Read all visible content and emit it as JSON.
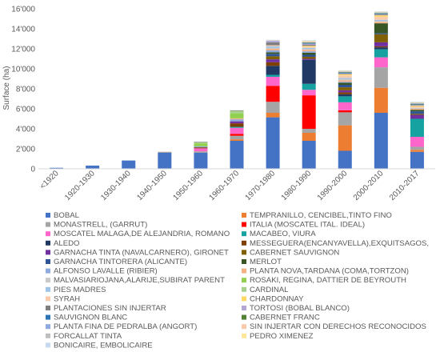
{
  "chart_data": {
    "type": "bar",
    "stacked": true,
    "ylabel": "Surface (ha)",
    "xlabel": "",
    "title": "",
    "ylim": [
      0,
      16000
    ],
    "yticks": [
      0,
      2000,
      4000,
      6000,
      8000,
      10000,
      12000,
      14000,
      16000
    ],
    "ytick_labels": [
      "0",
      "2'000",
      "4'000",
      "6'000",
      "8'000",
      "10'000",
      "12'000",
      "14'000",
      "16'000"
    ],
    "grid": false,
    "legend_placement": "bottom, two columns",
    "categories": [
      "<1920",
      "1920-1930",
      "1930-1940",
      "1940-1950",
      "1950-1960",
      "1960-1970",
      "1970-1980",
      "1980-1990",
      "1990-2000",
      "2000-2010",
      "2010-2017"
    ],
    "series": [
      {
        "name": "BOBAL",
        "color": "#4472C4",
        "values": [
          100,
          320,
          830,
          1600,
          1600,
          2800,
          5150,
          2800,
          1800,
          5600,
          1700
        ]
      },
      {
        "name": "TEMPRANILLO, CENCIBEL,TINTO FINO",
        "color": "#ED7D31",
        "values": [
          0,
          0,
          0,
          0,
          0,
          150,
          450,
          800,
          2550,
          2500,
          200
        ]
      },
      {
        "name": "MONASTRELL, (GARRUT)",
        "color": "#A5A5A5",
        "values": [
          0,
          0,
          0,
          100,
          150,
          350,
          1100,
          400,
          1300,
          2050,
          300
        ]
      },
      {
        "name": "ITALIA (MOSCATEL ITAL. IDEAL)",
        "color": "#FF0000",
        "values": [
          0,
          0,
          0,
          0,
          0,
          200,
          1600,
          3350,
          200,
          0,
          0
        ]
      },
      {
        "name": "MOSCATEL MALAGA,DE ALEJANDRIA, ROMANO",
        "color": "#FF66CC",
        "values": [
          0,
          0,
          0,
          0,
          300,
          600,
          900,
          550,
          800,
          1000,
          1000
        ]
      },
      {
        "name": "MACABEO, VIURA",
        "color": "#17A2A2",
        "values": [
          0,
          0,
          0,
          0,
          0,
          100,
          200,
          600,
          600,
          800,
          1800
        ]
      },
      {
        "name": "ALEDO",
        "color": "#1F3864",
        "values": [
          0,
          0,
          0,
          0,
          0,
          0,
          900,
          2400,
          200,
          200,
          0
        ]
      },
      {
        "name": "MESSEGUERA(ENCANYAVELLA),EXQUITSAGOS,",
        "color": "#7F3F00",
        "values": [
          0,
          0,
          0,
          0,
          100,
          350,
          350,
          0,
          200,
          100,
          0
        ]
      },
      {
        "name": "GARNACHA TINTA (NAVALCARNERO), GIRONET",
        "color": "#7030A0",
        "values": [
          0,
          0,
          0,
          0,
          0,
          200,
          300,
          100,
          200,
          400,
          400
        ]
      },
      {
        "name": "CABERNET SAUVIGNON",
        "color": "#806000",
        "values": [
          0,
          0,
          0,
          0,
          0,
          0,
          300,
          200,
          300,
          800,
          100
        ]
      },
      {
        "name": "GARNACHA TINTORERA (ALICANTE)",
        "color": "#2F5597",
        "values": [
          0,
          0,
          0,
          0,
          0,
          0,
          250,
          200,
          250,
          100,
          250
        ]
      },
      {
        "name": "MERLOT",
        "color": "#375623",
        "values": [
          0,
          0,
          0,
          0,
          0,
          0,
          150,
          200,
          200,
          1000,
          150
        ]
      },
      {
        "name": "ALFONSO LAVALLE (RIBIER)",
        "color": "#8FAADC",
        "values": [
          0,
          0,
          0,
          0,
          100,
          200,
          200,
          150,
          100,
          0,
          0
        ]
      },
      {
        "name": "PLANTA NOVA,TARDANA (COMA,TORTZON)",
        "color": "#F4B183",
        "values": [
          0,
          0,
          0,
          0,
          0,
          100,
          150,
          150,
          150,
          150,
          100
        ]
      },
      {
        "name": "MALVASIARIOJANA,ALARIJE,SUBIRAT PARENT",
        "color": "#C9C9C9",
        "values": [
          0,
          0,
          0,
          0,
          0,
          0,
          100,
          100,
          150,
          100,
          50
        ]
      },
      {
        "name": "ROSAKI, REGINA, DATTIER DE BEYROUTH",
        "color": "#92D050",
        "values": [
          0,
          0,
          0,
          0,
          300,
          500,
          0,
          0,
          0,
          0,
          0
        ]
      },
      {
        "name": "PIES MADRES",
        "color": "#9DC3E6",
        "values": [
          0,
          0,
          0,
          0,
          0,
          0,
          150,
          100,
          100,
          100,
          50
        ]
      },
      {
        "name": "CARDINAL",
        "color": "#A9D18E",
        "values": [
          0,
          0,
          0,
          0,
          100,
          250,
          0,
          0,
          0,
          0,
          0
        ]
      },
      {
        "name": "SYRAH",
        "color": "#F8CBAD",
        "values": [
          0,
          0,
          0,
          0,
          0,
          0,
          100,
          100,
          250,
          300,
          100
        ]
      },
      {
        "name": "CHARDONNAY",
        "color": "#FFD966",
        "values": [
          0,
          0,
          0,
          0,
          0,
          0,
          0,
          100,
          100,
          150,
          100
        ]
      },
      {
        "name": "PLANTACIONES SIN INJERTAR",
        "color": "#7F7F7F",
        "values": [
          0,
          0,
          0,
          0,
          50,
          50,
          300,
          100,
          50,
          50,
          50
        ]
      },
      {
        "name": "TORTOSI (BOBAL BLANCO)",
        "color": "#B4A7D6",
        "values": [
          0,
          0,
          0,
          0,
          0,
          0,
          100,
          100,
          50,
          50,
          50
        ]
      },
      {
        "name": "SAUVIGNON BLANC",
        "color": "#2E75B6",
        "values": [
          0,
          0,
          0,
          0,
          0,
          0,
          0,
          50,
          50,
          50,
          50
        ]
      },
      {
        "name": "CABERNET FRANC",
        "color": "#548235",
        "values": [
          0,
          0,
          0,
          0,
          0,
          0,
          0,
          50,
          50,
          50,
          50
        ]
      },
      {
        "name": "PLANTA FINA DE PEDRALBA (ANGORT)",
        "color": "#8EA9DB",
        "values": [
          0,
          0,
          0,
          0,
          0,
          0,
          50,
          50,
          50,
          50,
          50
        ]
      },
      {
        "name": "SIN INJERTAR CON DERECHOS RECONOCIDOS",
        "color": "#F8CBAD",
        "values": [
          0,
          0,
          0,
          0,
          0,
          0,
          50,
          50,
          0,
          0,
          0
        ]
      },
      {
        "name": "FORCALLAT TINTA",
        "color": "#BFBFBF",
        "values": [
          0,
          0,
          0,
          0,
          0,
          0,
          0,
          50,
          50,
          50,
          50
        ]
      },
      {
        "name": "PEDRO XIMENEZ",
        "color": "#FFE699",
        "values": [
          0,
          0,
          0,
          0,
          0,
          0,
          0,
          50,
          50,
          50,
          50
        ]
      },
      {
        "name": "BONICAIRE, EMBOLICAIRE",
        "color": "#C5D9F1",
        "values": [
          0,
          0,
          0,
          0,
          0,
          0,
          50,
          50,
          50,
          50,
          50
        ]
      }
    ]
  }
}
